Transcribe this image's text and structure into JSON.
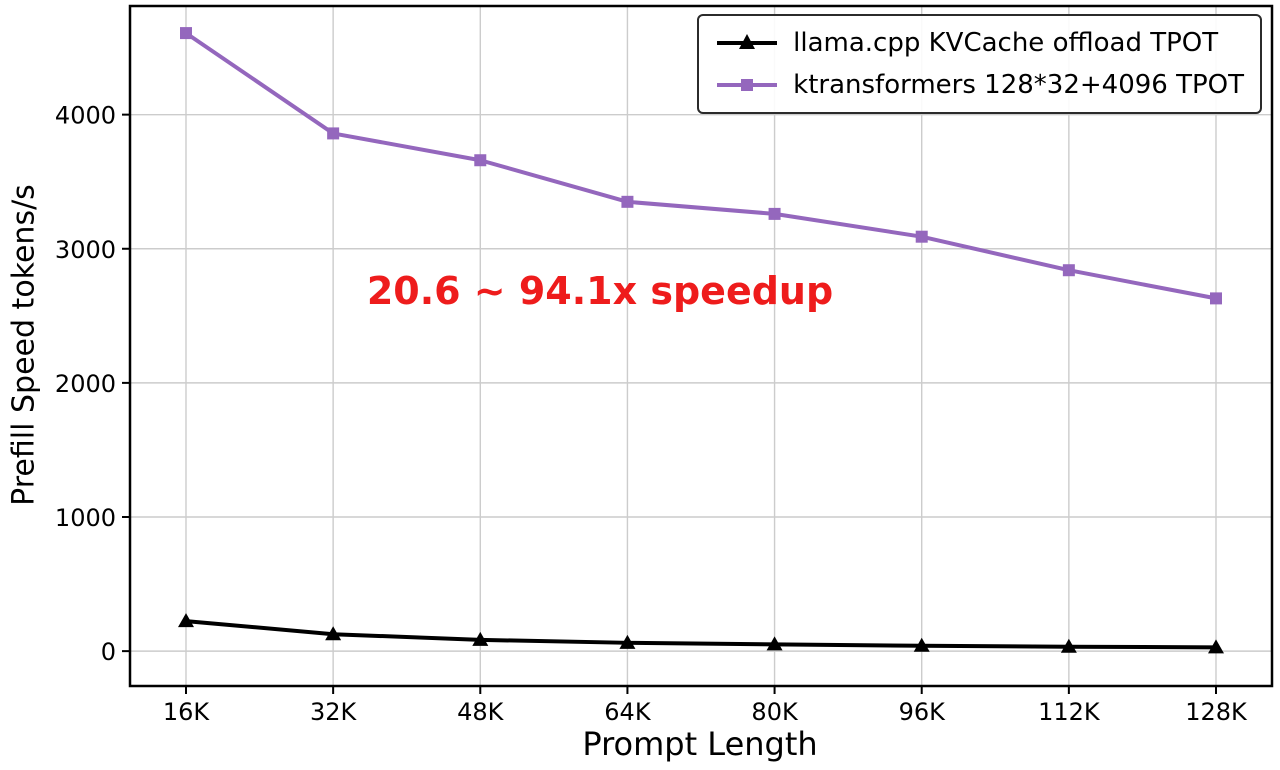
{
  "chart_data": {
    "type": "line",
    "title": "",
    "xlabel": "Prompt Length",
    "ylabel": "Prefill Speed tokens/s",
    "categories": [
      "16K",
      "32K",
      "48K",
      "64K",
      "80K",
      "96K",
      "112K",
      "128K"
    ],
    "yticks": [
      0,
      1000,
      2000,
      3000,
      4000
    ],
    "ylim": [
      -260,
      4810
    ],
    "grid": true,
    "legend_position": "upper right",
    "series": [
      {
        "name": "llama.cpp KVCache offload TPOT",
        "color": "#000000",
        "marker": "triangle",
        "values": [
          224,
          126,
          84,
          62,
          50,
          40,
          33,
          28
        ]
      },
      {
        "name": "ktransformers 128*32+4096 TPOT",
        "color": "#9467bd",
        "marker": "square",
        "values": [
          4608,
          3860,
          3660,
          3350,
          3260,
          3090,
          2840,
          2630
        ]
      }
    ],
    "annotation": {
      "text": "20.6 ~ 94.1x speedup",
      "color": "#ee1c1c"
    },
    "colors": {
      "grid": "#cccccc",
      "frame": "#000000",
      "background": "#ffffff"
    }
  }
}
